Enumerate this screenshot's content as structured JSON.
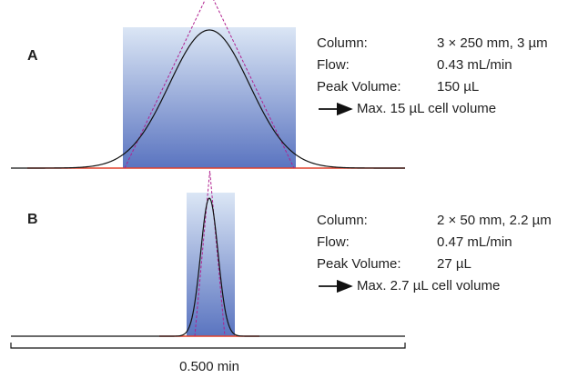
{
  "panels": [
    {
      "label": "A",
      "specs": [
        {
          "label": "Column:",
          "value": "3 × 250 mm, 3 µm"
        },
        {
          "label": "Flow:",
          "value": "0.43 mL/min"
        },
        {
          "label": "Peak Volume:",
          "value": "150 µL"
        }
      ],
      "note": "Max. 15 µL cell volume"
    },
    {
      "label": "B",
      "specs": [
        {
          "label": "Column:",
          "value": "2 × 50 mm, 2.2 µm"
        },
        {
          "label": "Flow:",
          "value": "0.47 mL/min"
        },
        {
          "label": "Peak Volume:",
          "value": "27 µL"
        }
      ],
      "note": "Max. 2.7 µL cell volume"
    }
  ],
  "scale_bar": {
    "label": "0.500 min"
  }
}
